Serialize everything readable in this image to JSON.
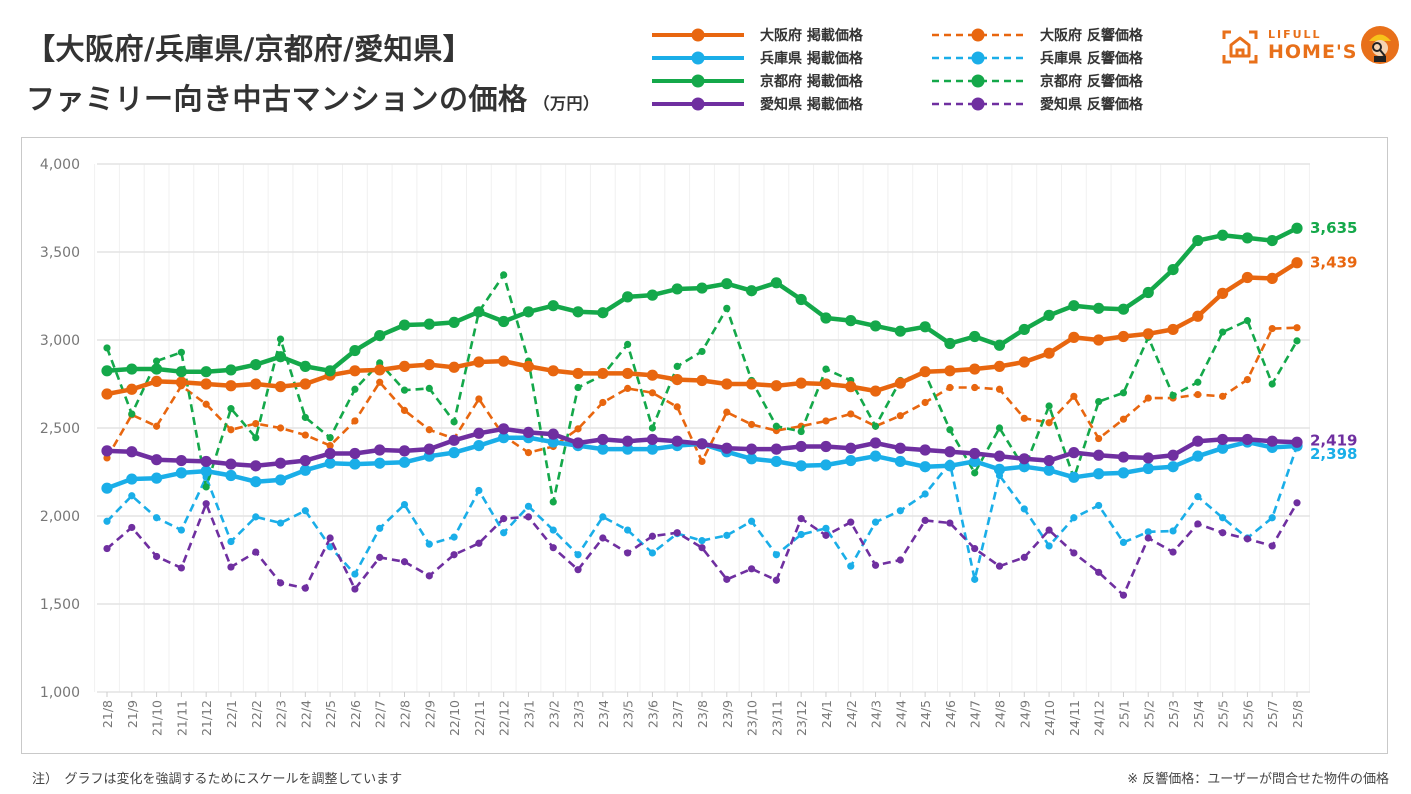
{
  "header": {
    "title_line1": "【大阪府/兵庫県/京都府/愛知県】",
    "title_line2": "ファミリー向き中古マンションの価格",
    "unit": "（万円）"
  },
  "logo": {
    "line1": "LIFULL",
    "line2": "HOME'S"
  },
  "footer": {
    "note_left": "注）　グラフは変化を強調するためにスケールを調整しています",
    "note_right": "※ 反響価格：ユーザーが問合せた物件の価格"
  },
  "colors": {
    "osaka": "#e8660f",
    "hyogo": "#1aaee8",
    "kyoto": "#14a84a",
    "aichi": "#6f2fa0"
  },
  "chart_data": {
    "type": "line",
    "title": "【大阪府/兵庫県/京都府/愛知県】ファミリー向き中古マンションの価格（万円）",
    "xlabel": "",
    "ylabel": "",
    "ylim": [
      1000,
      4000
    ],
    "yticks": [
      1000,
      1500,
      2000,
      2500,
      3000,
      3500,
      4000
    ],
    "ytick_labels": [
      "1,000",
      "1,500",
      "2,000",
      "2,500",
      "3,000",
      "3,500",
      "4,000"
    ],
    "grid": true,
    "legend_position": "top",
    "x": [
      "21/8",
      "21/9",
      "21/10",
      "21/11",
      "21/12",
      "22/1",
      "22/2",
      "22/3",
      "22/4",
      "22/5",
      "22/6",
      "22/7",
      "22/8",
      "22/9",
      "22/10",
      "22/11",
      "22/12",
      "23/1",
      "23/2",
      "23/3",
      "23/4",
      "23/5",
      "23/6",
      "23/7",
      "23/8",
      "23/9",
      "23/10",
      "23/11",
      "23/12",
      "24/1",
      "24/2",
      "24/3",
      "24/4",
      "24/5",
      "24/6",
      "24/7",
      "24/8",
      "24/9",
      "24/10",
      "24/11",
      "24/12",
      "25/1",
      "25/2",
      "25/3",
      "25/4",
      "25/5",
      "25/6",
      "25/7",
      "25/8"
    ],
    "series": [
      {
        "name": "大阪府 掲載価格",
        "key": "osaka",
        "style": "solid",
        "values": [
          2693,
          2720,
          2765,
          2760,
          2750,
          2740,
          2750,
          2735,
          2750,
          2800,
          2825,
          2830,
          2850,
          2860,
          2845,
          2875,
          2880,
          2850,
          2825,
          2810,
          2810,
          2810,
          2800,
          2775,
          2770,
          2750,
          2750,
          2740,
          2755,
          2750,
          2735,
          2710,
          2755,
          2820,
          2825,
          2835,
          2850,
          2875,
          2925,
          3015,
          3000,
          3020,
          3035,
          3060,
          3135,
          3265,
          3355,
          3350,
          3439
        ]
      },
      {
        "name": "兵庫県 掲載価格",
        "key": "hyogo",
        "style": "solid",
        "values": [
          2158,
          2210,
          2215,
          2245,
          2255,
          2230,
          2195,
          2205,
          2260,
          2300,
          2295,
          2300,
          2305,
          2340,
          2360,
          2400,
          2445,
          2445,
          2420,
          2400,
          2380,
          2380,
          2380,
          2400,
          2410,
          2365,
          2325,
          2310,
          2285,
          2290,
          2315,
          2340,
          2310,
          2280,
          2285,
          2310,
          2265,
          2280,
          2260,
          2220,
          2240,
          2245,
          2270,
          2280,
          2340,
          2385,
          2420,
          2390,
          2398
        ]
      },
      {
        "name": "京都府 掲載価格",
        "key": "kyoto",
        "style": "solid",
        "values": [
          2825,
          2835,
          2835,
          2820,
          2820,
          2830,
          2860,
          2905,
          2850,
          2825,
          2940,
          3025,
          3085,
          3090,
          3100,
          3160,
          3105,
          3160,
          3195,
          3160,
          3155,
          3245,
          3255,
          3290,
          3295,
          3320,
          3280,
          3325,
          3230,
          3125,
          3110,
          3080,
          3050,
          3075,
          2980,
          3020,
          2970,
          3060,
          3140,
          3195,
          3180,
          3175,
          3270,
          3400,
          3565,
          3595,
          3580,
          3565,
          3635
        ]
      },
      {
        "name": "愛知県 掲載価格",
        "key": "aichi",
        "style": "solid",
        "values": [
          2370,
          2365,
          2320,
          2315,
          2310,
          2295,
          2285,
          2300,
          2315,
          2355,
          2355,
          2375,
          2370,
          2380,
          2430,
          2470,
          2495,
          2475,
          2465,
          2415,
          2435,
          2425,
          2435,
          2425,
          2410,
          2385,
          2380,
          2380,
          2395,
          2395,
          2385,
          2415,
          2385,
          2375,
          2365,
          2355,
          2340,
          2325,
          2315,
          2360,
          2345,
          2335,
          2330,
          2345,
          2425,
          2435,
          2435,
          2425,
          2419
        ]
      },
      {
        "name": "大阪府 反響価格",
        "key": "osaka",
        "style": "dashed",
        "values": [
          2330,
          2575,
          2510,
          2740,
          2635,
          2490,
          2525,
          2500,
          2460,
          2400,
          2540,
          2760,
          2600,
          2490,
          2440,
          2665,
          2455,
          2360,
          2395,
          2495,
          2645,
          2725,
          2700,
          2620,
          2310,
          2590,
          2520,
          2485,
          2510,
          2540,
          2580,
          2510,
          2570,
          2645,
          2730,
          2730,
          2720,
          2555,
          2530,
          2680,
          2440,
          2550,
          2670,
          2670,
          2690,
          2680,
          2775,
          3065,
          3070
        ]
      },
      {
        "name": "兵庫県 反響価格",
        "key": "hyogo",
        "style": "dashed",
        "values": [
          1970,
          2115,
          1990,
          1920,
          2220,
          1855,
          1995,
          1960,
          2030,
          1825,
          1670,
          1930,
          2065,
          1840,
          1880,
          2145,
          1905,
          2055,
          1920,
          1780,
          1995,
          1920,
          1790,
          1900,
          1860,
          1890,
          1970,
          1780,
          1895,
          1930,
          1715,
          1965,
          2030,
          2125,
          2300,
          1640,
          2230,
          2040,
          1830,
          1990,
          2060,
          1850,
          1910,
          1915,
          2110,
          1990,
          1875,
          1990,
          2398
        ]
      },
      {
        "name": "京都府 反響価格",
        "key": "kyoto",
        "style": "dashed",
        "values": [
          2955,
          2580,
          2880,
          2930,
          2165,
          2610,
          2445,
          3005,
          2560,
          2445,
          2720,
          2870,
          2715,
          2725,
          2535,
          3160,
          3370,
          2880,
          2080,
          2730,
          2800,
          2975,
          2500,
          2850,
          2935,
          3180,
          2770,
          2510,
          2480,
          2835,
          2770,
          2510,
          2770,
          2810,
          2490,
          2245,
          2500,
          2270,
          2625,
          2215,
          2650,
          2700,
          3015,
          2685,
          2760,
          3045,
          3110,
          2750,
          2995
        ]
      },
      {
        "name": "愛知県 反響価格",
        "key": "aichi",
        "style": "dashed",
        "values": [
          1815,
          1935,
          1770,
          1705,
          2070,
          1710,
          1795,
          1620,
          1590,
          1875,
          1585,
          1765,
          1740,
          1660,
          1780,
          1845,
          1985,
          1995,
          1820,
          1695,
          1875,
          1790,
          1885,
          1905,
          1820,
          1640,
          1700,
          1635,
          1985,
          1890,
          1965,
          1720,
          1750,
          1975,
          1960,
          1815,
          1715,
          1765,
          1920,
          1790,
          1680,
          1550,
          1875,
          1795,
          1955,
          1905,
          1870,
          1830,
          2075
        ]
      }
    ],
    "end_labels": [
      {
        "key": "kyoto",
        "text": "3,635",
        "value": 3635
      },
      {
        "key": "osaka",
        "text": "3,439",
        "value": 3439
      },
      {
        "key": "aichi",
        "text": "2,419",
        "value": 2419
      },
      {
        "key": "hyogo",
        "text": "2,398",
        "value": 2398
      }
    ]
  }
}
